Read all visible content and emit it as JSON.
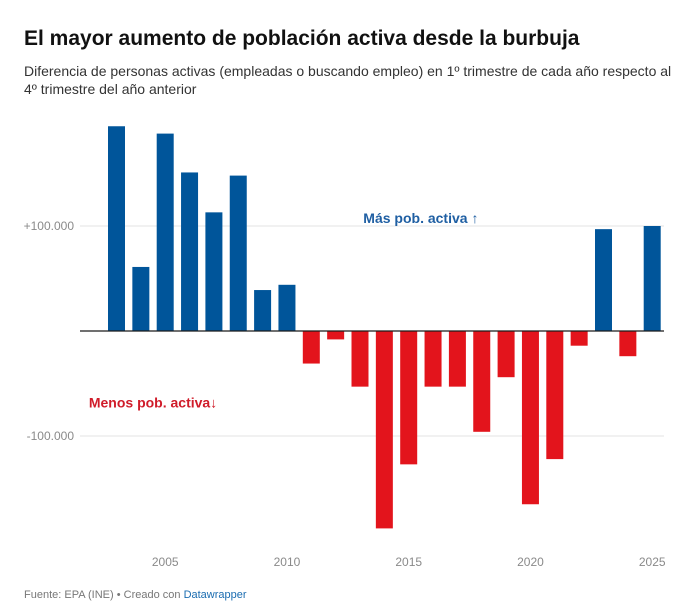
{
  "title": "El mayor aumento de población activa desde la burbuja",
  "subtitle": "Diferencia de personas activas (empleadas o buscando empleo) en 1º trimestre de cada año respecto al 4º trimestre del año anterior",
  "footer": {
    "prefix": "Fuente: EPA (INE) • Creado con",
    "link": "Datawrapper"
  },
  "colors": {
    "positive": "#00559a",
    "negative": "#e3141c",
    "grid": "#e3e3e3",
    "axis": "#1a1a1a",
    "positive_label": "#1f5fa3",
    "negative_label": "#d01c2a"
  },
  "chart_data": {
    "type": "bar",
    "title": "El mayor aumento de población activa desde la burbuja",
    "xlabel": "",
    "ylabel": "",
    "ylim": [
      -200000,
      200000
    ],
    "y_ticks": [
      100000,
      -100000
    ],
    "y_tick_labels": [
      "+100.000",
      "-100.000"
    ],
    "x_ticks": [
      2005,
      2010,
      2015,
      2020,
      2025
    ],
    "x_tick_labels": [
      "2005",
      "2010",
      "2015",
      "2020",
      "2025"
    ],
    "categories": [
      2003,
      2004,
      2005,
      2006,
      2007,
      2008,
      2009,
      2010,
      2011,
      2012,
      2013,
      2014,
      2015,
      2016,
      2017,
      2018,
      2019,
      2020,
      2021,
      2022,
      2023,
      2024,
      2025
    ],
    "values": [
      195000,
      61000,
      188000,
      151000,
      113000,
      148000,
      39000,
      44000,
      -31000,
      -8000,
      -53000,
      -188000,
      -127000,
      -53000,
      -53000,
      -96000,
      -44000,
      -165000,
      -122000,
      -14000,
      97000,
      -24000,
      100000
    ],
    "annotations": [
      {
        "text": "Más pob. activa ↑",
        "year": 2015.5,
        "value": 103000,
        "series": "positive"
      },
      {
        "text": "Menos pob. activa↓",
        "year": 2004.5,
        "value": -73000,
        "series": "negative"
      }
    ]
  }
}
